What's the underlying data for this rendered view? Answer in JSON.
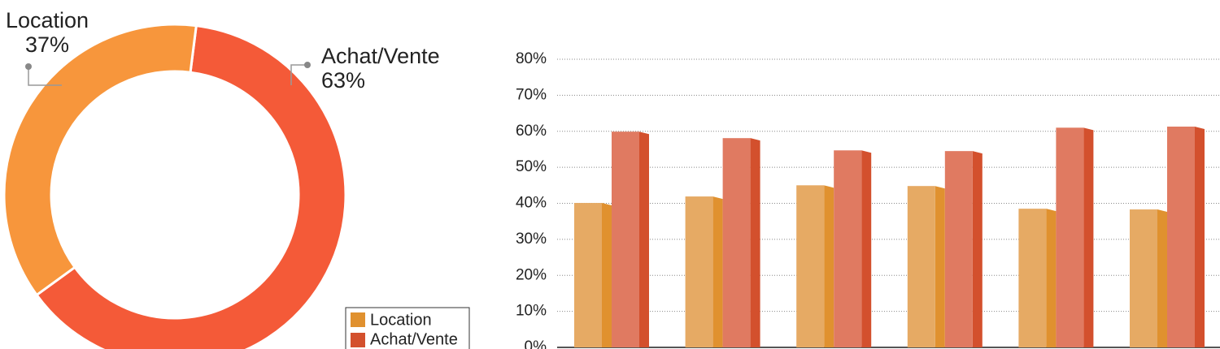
{
  "chart_data": [
    {
      "type": "donut",
      "categories": [
        "Location",
        "Achat/Vente"
      ],
      "values": [
        37,
        63
      ],
      "value_labels": [
        "37%",
        "63%"
      ],
      "colors": [
        "#f7963c",
        "#f45a38"
      ]
    },
    {
      "type": "bar3d",
      "categories": [
        null,
        null,
        null,
        null,
        null,
        null
      ],
      "series": [
        {
          "name": "Location",
          "color": "#e6aa64",
          "side_color": "#e0912f",
          "values": [
            40.1,
            41.9,
            45.0,
            44.8,
            38.5,
            38.3
          ]
        },
        {
          "name": "Achat/Vente",
          "color": "#e07a61",
          "side_color": "#d3502d",
          "values": [
            59.9,
            58.1,
            54.7,
            54.5,
            61.0,
            61.3
          ]
        }
      ],
      "ylim": [
        0,
        80
      ],
      "yticks": [
        {
          "value": 0,
          "label": "0%"
        },
        {
          "value": 10,
          "label": "10%"
        },
        {
          "value": 20,
          "label": "20%"
        },
        {
          "value": 30,
          "label": "30%"
        },
        {
          "value": 40,
          "label": "40%"
        },
        {
          "value": 50,
          "label": "50%"
        },
        {
          "value": 60,
          "label": "60%"
        },
        {
          "value": 70,
          "label": "70%"
        },
        {
          "value": 80,
          "label": "80%"
        }
      ],
      "grid": true
    }
  ]
}
